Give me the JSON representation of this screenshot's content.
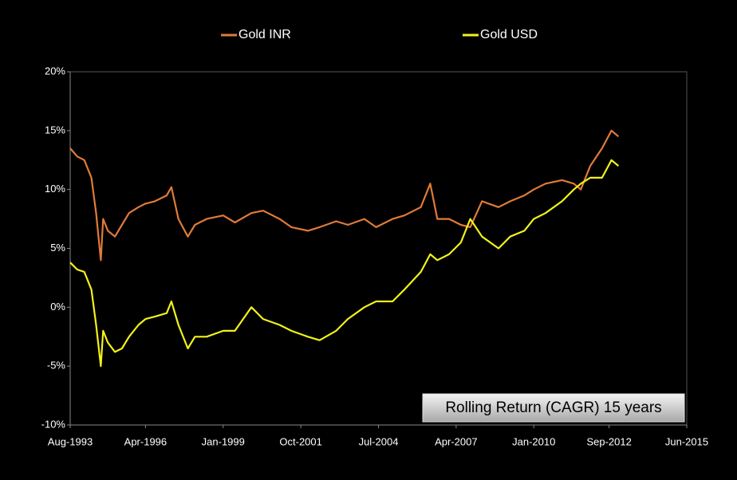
{
  "chart_data": {
    "type": "line",
    "annotation": "Rolling Return (CAGR) 15 years",
    "x": [
      "1993-08",
      "1993-11",
      "1994-02",
      "1994-05",
      "1994-07",
      "1994-09",
      "1994-10",
      "1994-12",
      "1995-03",
      "1995-06",
      "1995-09",
      "1996-01",
      "1996-04",
      "1996-08",
      "1997-01",
      "1997-03",
      "1997-06",
      "1997-10",
      "1998-01",
      "1998-06",
      "1999-01",
      "1999-06",
      "2000-01",
      "2000-06",
      "2001-01",
      "2001-06",
      "2002-01",
      "2002-06",
      "2003-01",
      "2003-06",
      "2004-01",
      "2004-06",
      "2005-01",
      "2005-06",
      "2006-01",
      "2006-05",
      "2006-08",
      "2007-01",
      "2007-06",
      "2007-10",
      "2008-03",
      "2008-10",
      "2009-03",
      "2009-09",
      "2010-01",
      "2010-06",
      "2011-01",
      "2011-06",
      "2011-09",
      "2012-01",
      "2012-06",
      "2012-10",
      "2013-01"
    ],
    "series": [
      {
        "name": "Gold INR",
        "color": "#e07b39",
        "values": [
          13.5,
          12.8,
          12.5,
          11.0,
          8.0,
          4.0,
          7.5,
          6.5,
          6.0,
          7.0,
          8.0,
          8.5,
          8.8,
          9.0,
          9.5,
          10.2,
          7.5,
          6.0,
          7.0,
          7.5,
          7.8,
          7.2,
          8.0,
          8.2,
          7.5,
          6.8,
          6.5,
          6.8,
          7.3,
          7.0,
          7.5,
          6.8,
          7.5,
          7.8,
          8.5,
          10.5,
          7.5,
          7.5,
          7.0,
          6.8,
          9.0,
          8.5,
          9.0,
          9.5,
          10.0,
          10.5,
          10.8,
          10.5,
          10.0,
          12.0,
          13.5,
          15.0,
          14.5
        ]
      },
      {
        "name": "Gold USD",
        "color": "#f2f21a",
        "values": [
          3.8,
          3.2,
          3.0,
          1.5,
          -1.5,
          -5.0,
          -2.0,
          -3.0,
          -3.8,
          -3.5,
          -2.5,
          -1.5,
          -1.0,
          -0.8,
          -0.5,
          0.5,
          -1.5,
          -3.5,
          -2.5,
          -2.5,
          -2.0,
          -2.0,
          0,
          -1.0,
          -1.5,
          -2.0,
          -2.5,
          -2.8,
          -2.0,
          -1.0,
          0,
          0.5,
          0.5,
          1.5,
          3.0,
          4.5,
          4.0,
          4.5,
          5.5,
          7.5,
          6.0,
          5.0,
          6.0,
          6.5,
          7.5,
          8.0,
          9.0,
          10.0,
          10.5,
          11.0,
          11.0,
          12.5,
          12.0
        ]
      }
    ],
    "xlim": [
      "1993-08",
      "2015-06"
    ],
    "xticks": [
      {
        "value": "1993-08",
        "label": "Aug-1993"
      },
      {
        "value": "1996-04",
        "label": "Apr-1996"
      },
      {
        "value": "1999-01",
        "label": "Jan-1999"
      },
      {
        "value": "2001-10",
        "label": "Oct-2001"
      },
      {
        "value": "2004-07",
        "label": "Jul-2004"
      },
      {
        "value": "2007-04",
        "label": "Apr-2007"
      },
      {
        "value": "2010-01",
        "label": "Jan-2010"
      },
      {
        "value": "2012-09",
        "label": "Sep-2012"
      },
      {
        "value": "2015-06",
        "label": "Jun-2015"
      }
    ],
    "ylim": [
      -10,
      20
    ],
    "yticks": [
      {
        "value": -10,
        "label": "-10%"
      },
      {
        "value": -5,
        "label": "-5%"
      },
      {
        "value": 0,
        "label": "0%"
      },
      {
        "value": 5,
        "label": "5%"
      },
      {
        "value": 10,
        "label": "10%"
      },
      {
        "value": 15,
        "label": "15%"
      },
      {
        "value": 20,
        "label": "20%"
      }
    ],
    "grid": false,
    "legend": "top"
  }
}
